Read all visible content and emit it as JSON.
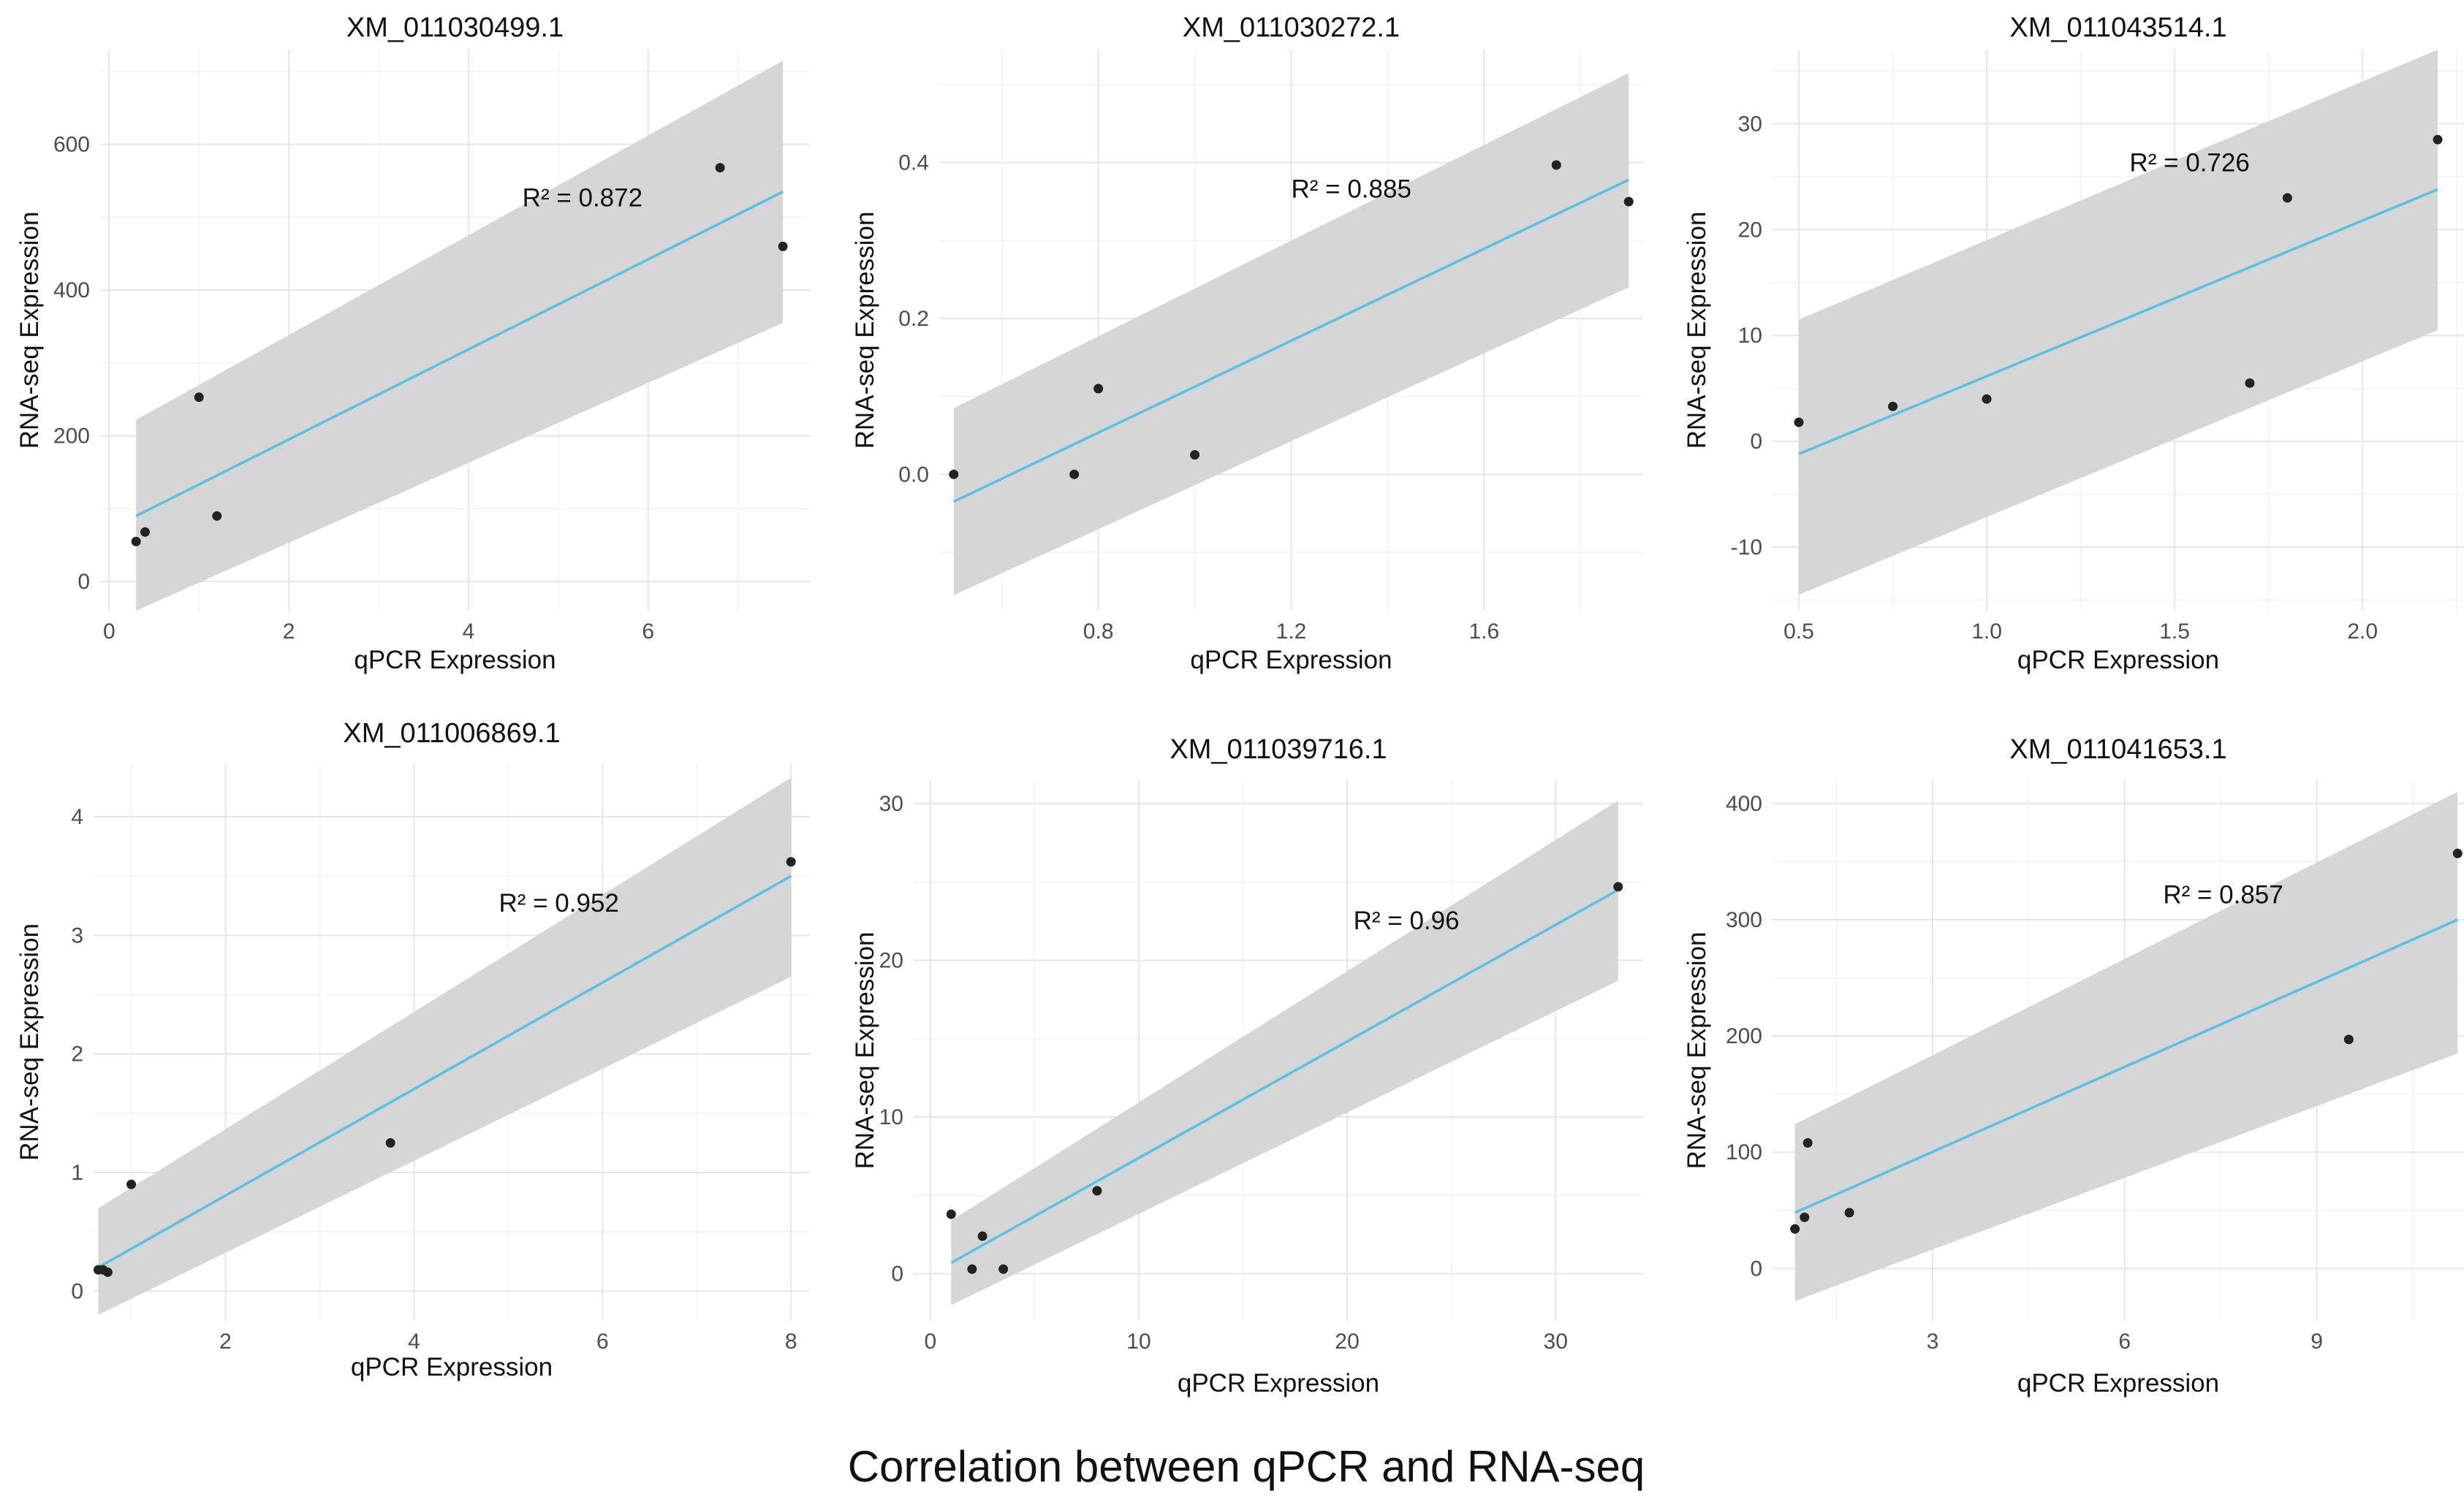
{
  "figure_title": "Correlation between qPCR and RNA-seq",
  "colors": {
    "fit_line": "#56c3e6",
    "confidence_band": "#d6d6d6",
    "points": "#222222",
    "grid": "#e6e6e6"
  },
  "chart_data": [
    {
      "type": "scatter",
      "title": "XM_011030499.1",
      "xlabel": "qPCR Expression",
      "ylabel": "RNA-seq Expression",
      "xlim": [
        -0.1,
        7.8
      ],
      "ylim": [
        -40,
        730
      ],
      "xticks": [
        0,
        2,
        4,
        6
      ],
      "xtick_labels": [
        "0",
        "2",
        "4",
        "6"
      ],
      "yticks": [
        0,
        200,
        400,
        600
      ],
      "ytick_labels": [
        "0",
        "200",
        "400",
        "600"
      ],
      "x": [
        0.3,
        0.4,
        1.0,
        1.2,
        6.8,
        7.5
      ],
      "y": [
        55,
        68,
        253,
        90,
        568,
        460
      ],
      "fit_x": [
        0.3,
        7.5
      ],
      "fit_y": [
        90,
        535
      ],
      "band_lower": [
        -40,
        355
      ],
      "band_upper": [
        222,
        715
      ],
      "r2_label": "R² = 0.872",
      "r2_pos": [
        4.6,
        515
      ]
    },
    {
      "type": "scatter",
      "title": "XM_011030272.1",
      "xlabel": "qPCR Expression",
      "ylabel": "RNA-seq Expression",
      "xlim": [
        0.47,
        1.93
      ],
      "ylim": [
        -0.175,
        0.545
      ],
      "xticks": [
        0.8,
        1.2,
        1.6
      ],
      "xtick_labels": [
        "0.8",
        "1.2",
        "1.6"
      ],
      "yticks": [
        0.0,
        0.2,
        0.4
      ],
      "ytick_labels": [
        "0.0",
        "0.2",
        "0.4"
      ],
      "x": [
        0.5,
        0.75,
        0.8,
        1.0,
        1.75,
        1.9
      ],
      "y": [
        0.0,
        0.0,
        0.11,
        0.025,
        0.397,
        0.35
      ],
      "fit_x": [
        0.5,
        1.9
      ],
      "fit_y": [
        -0.035,
        0.378
      ],
      "band_lower": [
        -0.155,
        0.24
      ],
      "band_upper": [
        0.085,
        0.515
      ],
      "r2_label": "R² = 0.885",
      "r2_pos": [
        1.2,
        0.355
      ]
    },
    {
      "type": "scatter",
      "title": "XM_011043514.1",
      "xlabel": "qPCR Expression",
      "ylabel": "RNA-seq Expression",
      "xlim": [
        0.43,
        2.27
      ],
      "ylim": [
        -16,
        37
      ],
      "xticks": [
        0.5,
        1.0,
        1.5,
        2.0
      ],
      "xtick_labels": [
        "0.5",
        "1.0",
        "1.5",
        "2.0"
      ],
      "yticks": [
        -10,
        0,
        10,
        20,
        30
      ],
      "ytick_labels": [
        "-10",
        "0",
        "10",
        "20",
        "30"
      ],
      "x": [
        0.5,
        0.75,
        1.0,
        1.7,
        1.8,
        2.2
      ],
      "y": [
        1.8,
        3.3,
        4.0,
        5.5,
        23.0,
        28.5
      ],
      "fit_x": [
        0.5,
        2.2
      ],
      "fit_y": [
        -1.2,
        23.8
      ],
      "band_lower": [
        -14.5,
        10.5
      ],
      "band_upper": [
        11.5,
        37
      ],
      "r2_label": "R² = 0.726",
      "r2_pos": [
        1.38,
        25.5
      ]
    },
    {
      "type": "scatter",
      "title": "XM_011006869.1",
      "xlabel": "qPCR Expression",
      "ylabel": "RNA-seq Expression",
      "xlim": [
        0.6,
        8.2
      ],
      "ylim": [
        -0.25,
        4.45
      ],
      "xticks": [
        2,
        4,
        6,
        8
      ],
      "xtick_labels": [
        "2",
        "4",
        "6",
        "8"
      ],
      "yticks": [
        0,
        1,
        2,
        3,
        4
      ],
      "ytick_labels": [
        "0",
        "1",
        "2",
        "3",
        "4"
      ],
      "x": [
        0.65,
        0.7,
        0.75,
        1.0,
        3.75,
        8.0
      ],
      "y": [
        0.18,
        0.18,
        0.16,
        0.9,
        1.25,
        3.62
      ],
      "fit_x": [
        0.65,
        8.0
      ],
      "fit_y": [
        0.2,
        3.5
      ],
      "band_lower": [
        -0.2,
        2.65
      ],
      "band_upper": [
        0.7,
        4.33
      ],
      "r2_label": "R² = 0.952",
      "r2_pos": [
        4.9,
        3.2
      ]
    },
    {
      "type": "scatter",
      "title": "XM_011039716.1",
      "xlabel": "qPCR Expression",
      "ylabel": "RNA-seq Expression",
      "xlim": [
        -0.8,
        34.2
      ],
      "ylim": [
        -3,
        31.5
      ],
      "xticks": [
        0,
        10,
        20,
        30
      ],
      "xtick_labels": [
        "0",
        "10",
        "20",
        "30"
      ],
      "yticks": [
        0,
        10,
        20,
        30
      ],
      "ytick_labels": [
        "0",
        "10",
        "20",
        "30"
      ],
      "x": [
        1.0,
        2.0,
        2.5,
        3.5,
        8.0,
        33.0
      ],
      "y": [
        3.8,
        0.3,
        2.4,
        0.3,
        5.3,
        24.7
      ],
      "fit_x": [
        1.0,
        33.0
      ],
      "fit_y": [
        0.7,
        24.5
      ],
      "band_lower": [
        -2,
        18.7
      ],
      "band_upper": [
        3.4,
        30.2
      ],
      "r2_label": "R² = 0.96",
      "r2_pos": [
        20.3,
        22.0
      ]
    },
    {
      "type": "scatter",
      "title": "XM_011041653.1",
      "xlabel": "qPCR Expression",
      "ylabel": "RNA-seq Expression",
      "xlim": [
        0.5,
        11.3
      ],
      "ylim": [
        -45,
        420
      ],
      "xticks": [
        3,
        6,
        9
      ],
      "xtick_labels": [
        "3",
        "6",
        "9"
      ],
      "yticks": [
        0,
        100,
        200,
        300,
        400
      ],
      "ytick_labels": [
        "0",
        "100",
        "200",
        "300",
        "400"
      ],
      "x": [
        0.85,
        1.0,
        1.05,
        1.7,
        9.5,
        11.2
      ],
      "y": [
        34,
        44,
        108,
        48,
        197,
        357
      ],
      "fit_x": [
        0.85,
        11.2
      ],
      "fit_y": [
        48,
        300
      ],
      "band_lower": [
        -28,
        185
      ],
      "band_upper": [
        124,
        410
      ],
      "r2_label": "R² = 0.857",
      "r2_pos": [
        6.6,
        314
      ]
    }
  ]
}
